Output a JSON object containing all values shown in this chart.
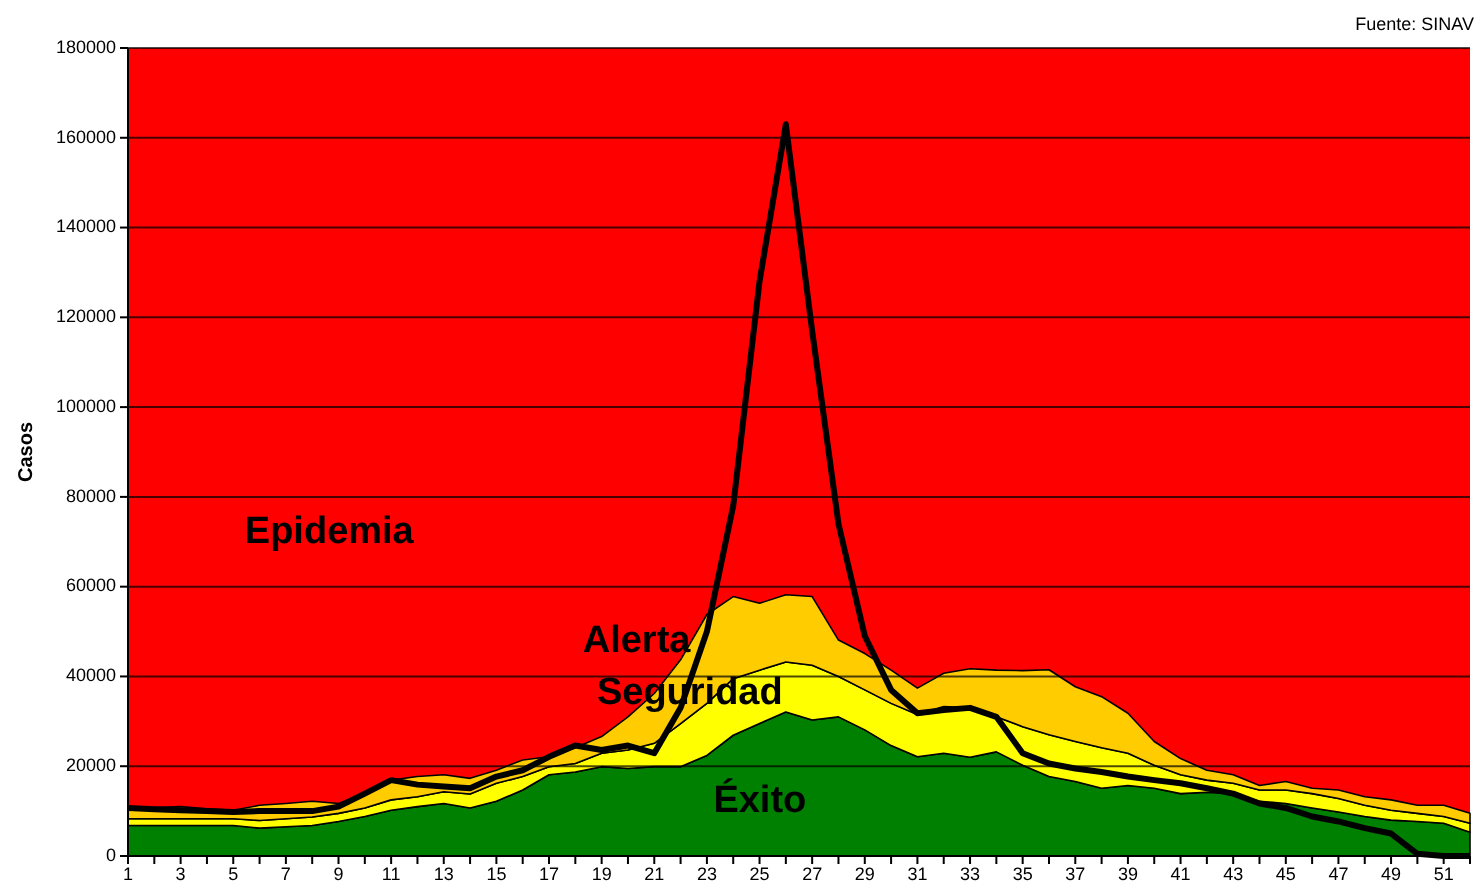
{
  "chart_data": {
    "type": "area",
    "stacked": true,
    "ylabel": "Casos",
    "annotations": [
      "Fuente: SINAV"
    ],
    "x": [
      1,
      2,
      3,
      4,
      5,
      6,
      7,
      8,
      9,
      10,
      11,
      12,
      13,
      14,
      15,
      16,
      17,
      18,
      19,
      20,
      21,
      22,
      23,
      24,
      25,
      26,
      27,
      28,
      29,
      30,
      31,
      32,
      33,
      34,
      35,
      36,
      37,
      38,
      39,
      40,
      41,
      42,
      43,
      44,
      45,
      46,
      47,
      48,
      49,
      50,
      51,
      52
    ],
    "xlim": [
      1,
      52
    ],
    "xticks": [
      1,
      {
        "value": 2,
        "label": null
      },
      3,
      {
        "value": 4,
        "label": null
      },
      5,
      {
        "value": 6,
        "label": null
      },
      7,
      {
        "value": 8,
        "label": null
      },
      9,
      {
        "value": 10,
        "label": null
      },
      11,
      {
        "value": 12,
        "label": null
      },
      13,
      {
        "value": 14,
        "label": null
      },
      15,
      {
        "value": 16,
        "label": null
      },
      17,
      {
        "value": 18,
        "label": null
      },
      19,
      {
        "value": 20,
        "label": null
      },
      21,
      {
        "value": 22,
        "label": null
      },
      23,
      {
        "value": 24,
        "label": null
      },
      25,
      {
        "value": 26,
        "label": null
      },
      27,
      {
        "value": 28,
        "label": null
      },
      29,
      {
        "value": 30,
        "label": null
      },
      31,
      {
        "value": 32,
        "label": null
      },
      33,
      {
        "value": 34,
        "label": null
      },
      35,
      {
        "value": 36,
        "label": null
      },
      37,
      {
        "value": 38,
        "label": null
      },
      39,
      {
        "value": 40,
        "label": null
      },
      41,
      {
        "value": 42,
        "label": null
      },
      43,
      {
        "value": 44,
        "label": null
      },
      45,
      {
        "value": 46,
        "label": null
      },
      47,
      {
        "value": 48,
        "label": null
      },
      49,
      {
        "value": 50,
        "label": null
      },
      51,
      {
        "value": 52,
        "label": null
      }
    ],
    "ylim": [
      0,
      180000
    ],
    "yticks": [
      0,
      20000,
      40000,
      60000,
      80000,
      100000,
      120000,
      140000,
      160000,
      180000
    ],
    "grid": "y",
    "bands": [
      {
        "axis": "y",
        "from": 0,
        "to": 180000,
        "label": "Epidemia",
        "color": "#ff0000"
      }
    ],
    "series": [
      {
        "name": "Éxito",
        "color": "#008000",
        "values": [
          6800,
          6800,
          6800,
          6800,
          6800,
          6200,
          6500,
          6800,
          7700,
          8800,
          10200,
          11000,
          11700,
          10700,
          12200,
          14700,
          18100,
          18700,
          19900,
          19500,
          19900,
          19900,
          22400,
          26900,
          29500,
          32100,
          30300,
          31000,
          28100,
          24600,
          22100,
          22900,
          22000,
          23200,
          20200,
          17700,
          16600,
          15100,
          15700,
          15100,
          13900,
          14200,
          13900,
          12200,
          11700,
          10700,
          9800,
          8800,
          8000,
          7700,
          7300,
          5300
        ]
      },
      {
        "name": "Seguridad",
        "color": "#ffff00",
        "values": [
          1500,
          1500,
          1500,
          1500,
          1500,
          1700,
          1800,
          1900,
          1800,
          1900,
          2300,
          2200,
          2600,
          3100,
          4000,
          3000,
          1800,
          1900,
          3000,
          4100,
          5200,
          9600,
          11600,
          12600,
          11900,
          11100,
          12200,
          9000,
          8900,
          9400,
          9400,
          10400,
          11000,
          7800,
          8600,
          9300,
          8900,
          9000,
          7200,
          5100,
          4200,
          2700,
          2300,
          2500,
          3000,
          3200,
          3000,
          2500,
          2200,
          1800,
          1500,
          2000
        ]
      },
      {
        "name": "Alerta",
        "color": "#ffcc00",
        "values": [
          2400,
          2500,
          2700,
          2200,
          1900,
          3400,
          3400,
          3500,
          2200,
          3200,
          4400,
          4500,
          3800,
          3500,
          2900,
          3700,
          2200,
          3500,
          3700,
          7400,
          11100,
          14200,
          19800,
          18300,
          14900,
          15000,
          15300,
          8100,
          8100,
          7400,
          5900,
          7400,
          8700,
          10400,
          12500,
          14500,
          12200,
          11400,
          8900,
          5300,
          3600,
          2200,
          1900,
          1000,
          1900,
          1200,
          1900,
          1900,
          2300,
          1800,
          2500,
          2200
        ]
      },
      {
        "type": "line",
        "color": "#000000",
        "values": [
          10700,
          10400,
          10200,
          10000,
          9800,
          10000,
          10000,
          10000,
          11000,
          13900,
          16900,
          15900,
          15500,
          15100,
          17700,
          19100,
          22100,
          24600,
          23600,
          24600,
          22900,
          33000,
          50000,
          78000,
          128000,
          163000,
          117000,
          74000,
          49000,
          37000,
          31800,
          32500,
          33000,
          31000,
          22900,
          20600,
          19500,
          18700,
          17700,
          16900,
          16200,
          15100,
          13900,
          11700,
          10700,
          8800,
          7700,
          6200,
          5000,
          500,
          0,
          0
        ]
      }
    ]
  }
}
